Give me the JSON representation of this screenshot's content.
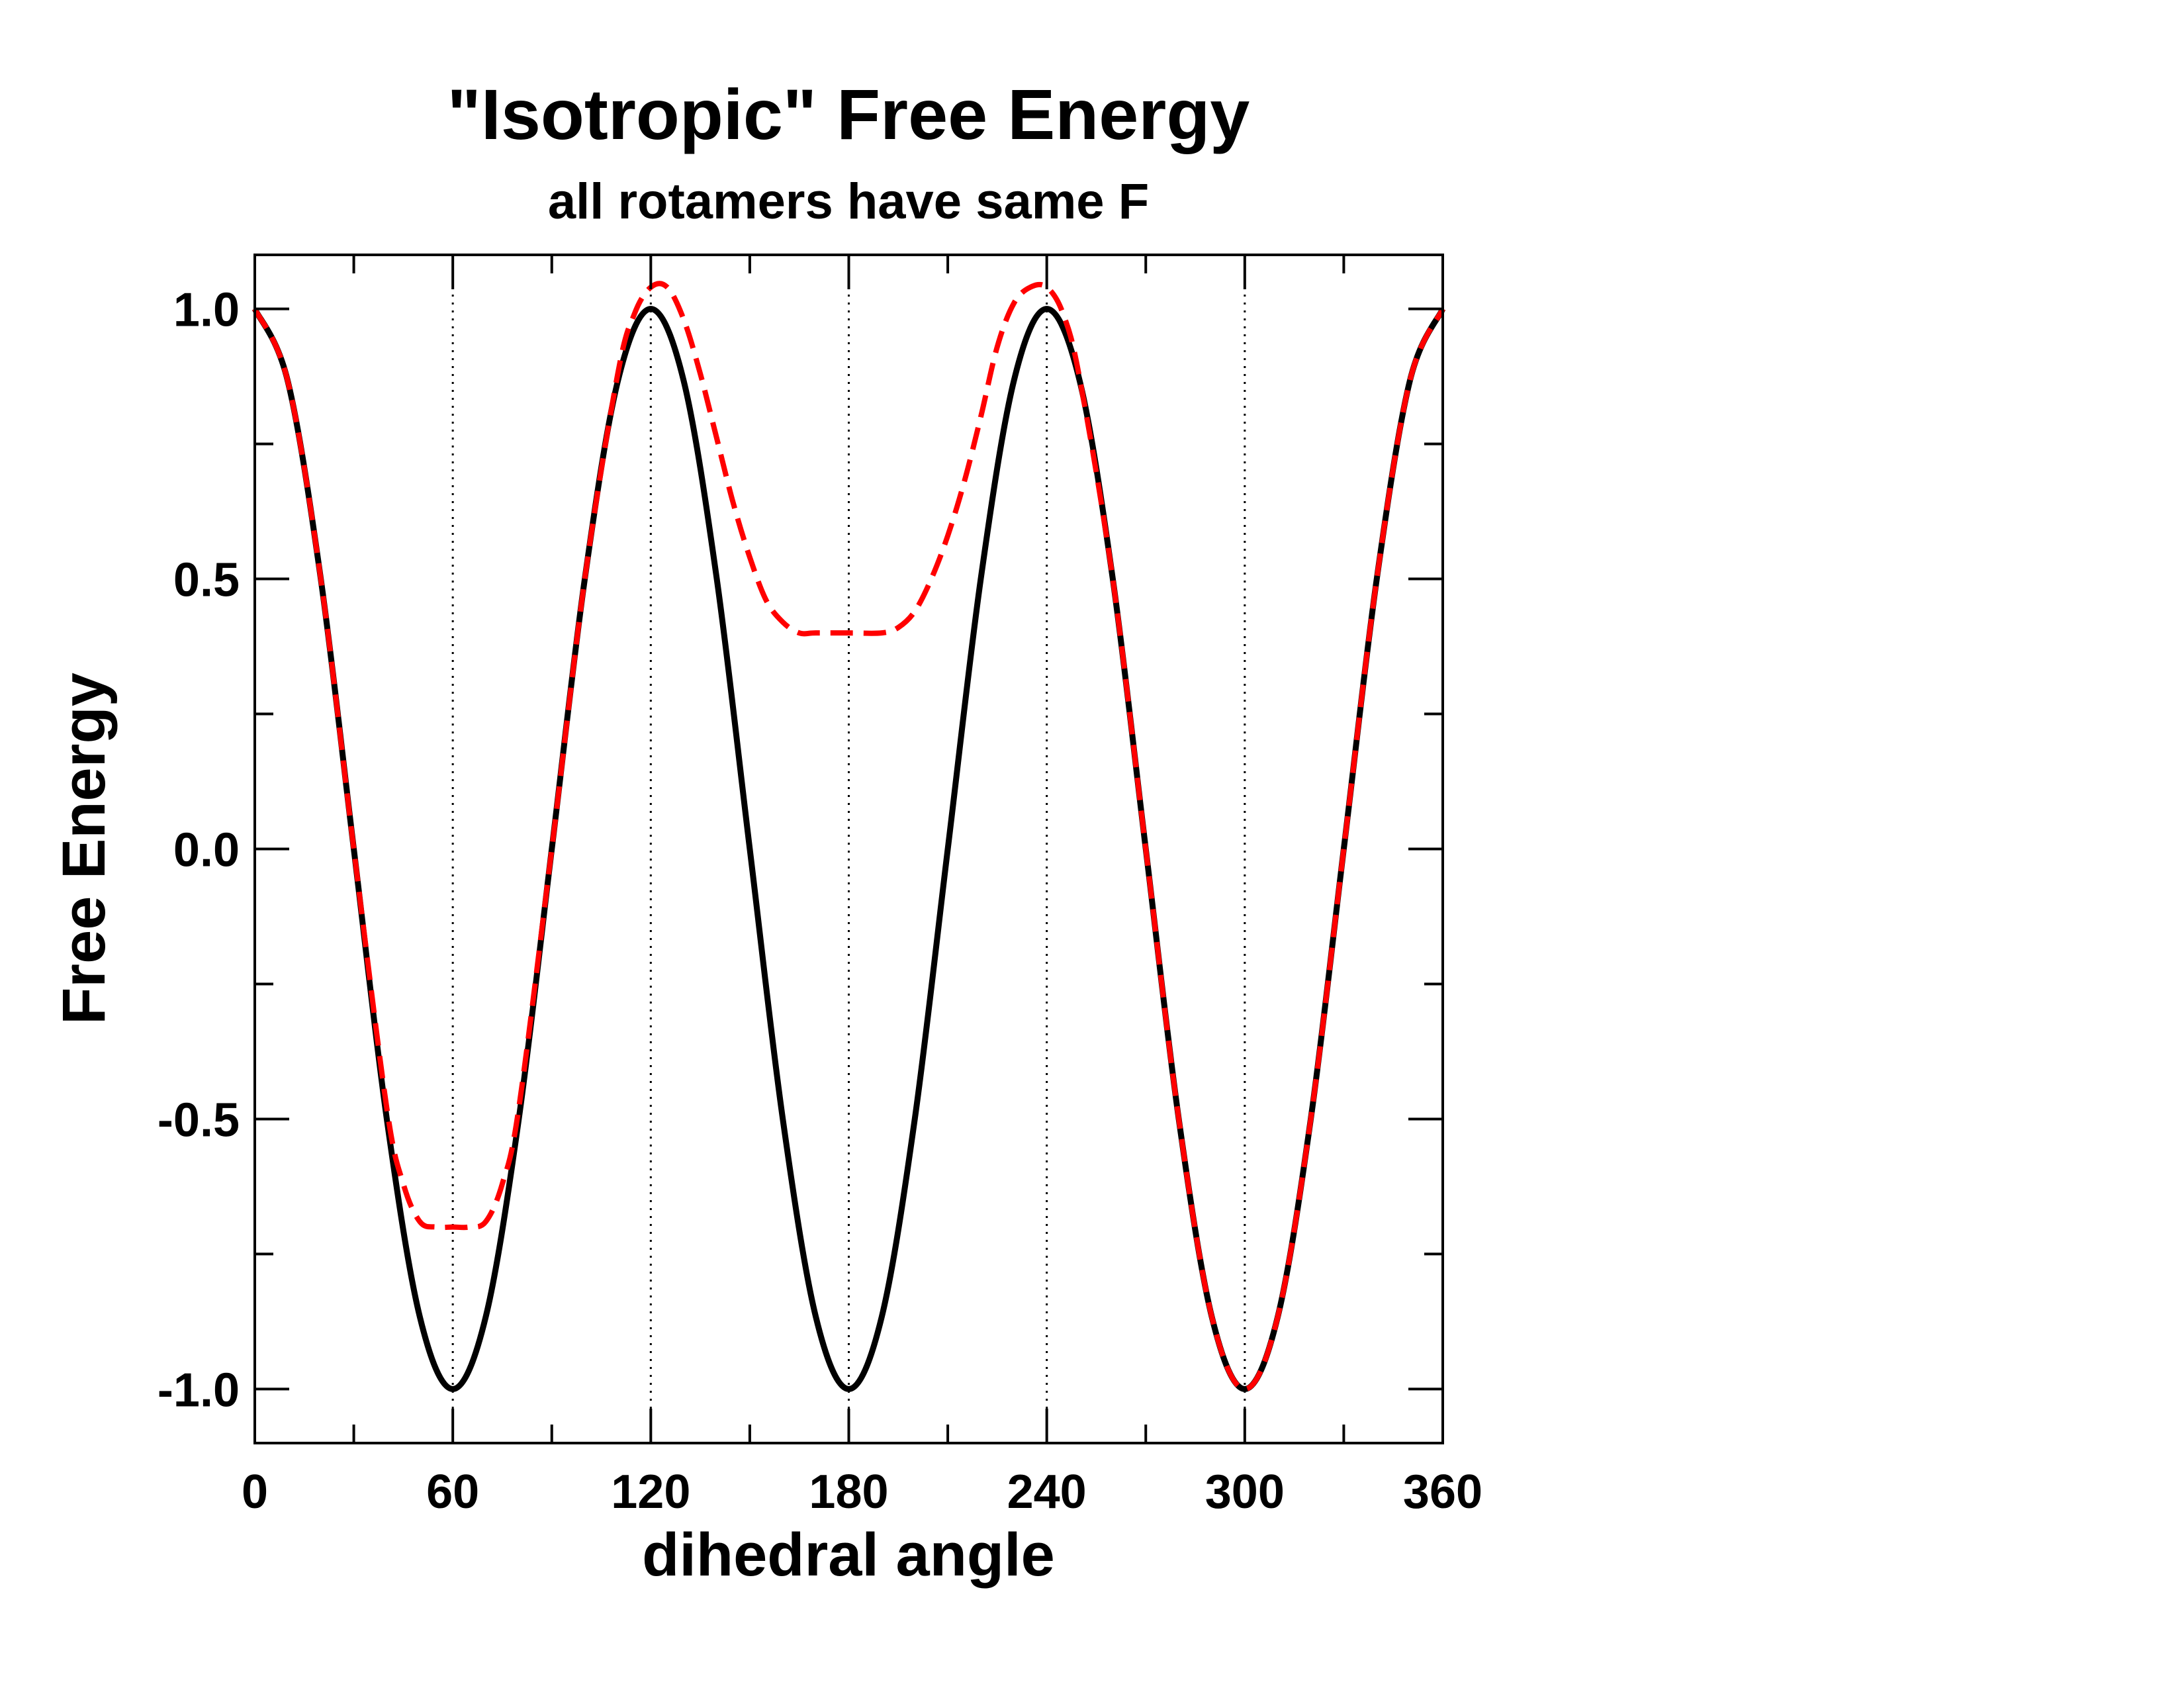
{
  "chart_data": {
    "type": "line",
    "title": "\"Isotropic\" Free Energy",
    "subtitle": "all rotamers have same F",
    "xlabel": "dihedral angle",
    "ylabel": "Free Energy",
    "xlim": [
      0,
      360
    ],
    "ylim": [
      -1.1,
      1.1
    ],
    "x_ticks": [
      "0",
      "60",
      "120",
      "180",
      "240",
      "300",
      "360"
    ],
    "y_ticks": [
      "-1.0",
      "-0.5",
      "0.0",
      "0.5",
      "1.0"
    ],
    "reference_lines_x": [
      60,
      120,
      180,
      240,
      300
    ],
    "grid": false,
    "legend": "none",
    "series": [
      {
        "style": "solid",
        "color": "#000000",
        "x": [
          0,
          10,
          20,
          30,
          40,
          50,
          60,
          70,
          80,
          90,
          100,
          110,
          120,
          130,
          140,
          150,
          160,
          170,
          180,
          190,
          200,
          210,
          220,
          230,
          240,
          250,
          260,
          270,
          280,
          290,
          300,
          310,
          320,
          330,
          340,
          350,
          360
        ],
        "y": [
          1.0,
          0.866,
          0.5,
          0.0,
          -0.5,
          -0.866,
          -1.0,
          -0.866,
          -0.5,
          0.0,
          0.5,
          0.866,
          1.0,
          0.866,
          0.5,
          0.0,
          -0.5,
          -0.866,
          -1.0,
          -0.866,
          -0.5,
          0.0,
          0.5,
          0.866,
          1.0,
          0.866,
          0.5,
          0.0,
          -0.5,
          -0.866,
          -1.0,
          -0.866,
          -0.5,
          0.0,
          0.5,
          0.866,
          1.0
        ]
      },
      {
        "style": "dashed",
        "color": "#ff0000",
        "x": [
          0,
          10,
          20,
          30,
          40,
          45,
          50,
          55,
          60,
          65,
          70,
          75,
          80,
          90,
          100,
          110,
          115,
          120,
          125,
          130,
          135,
          140,
          145,
          150,
          155,
          160,
          165,
          170,
          180,
          190,
          195,
          200,
          205,
          210,
          215,
          220,
          225,
          230,
          235,
          240,
          245,
          250,
          260,
          270,
          280,
          290,
          300,
          310,
          320,
          330,
          340,
          350,
          360
        ],
        "y": [
          1.0,
          0.866,
          0.5,
          0.0,
          -0.48,
          -0.62,
          -0.69,
          -0.7,
          -0.7,
          -0.7,
          -0.69,
          -0.62,
          -0.48,
          0.0,
          0.5,
          0.88,
          0.99,
          1.04,
          1.04,
          0.98,
          0.88,
          0.76,
          0.64,
          0.54,
          0.46,
          0.42,
          0.4,
          0.4,
          0.4,
          0.4,
          0.41,
          0.44,
          0.5,
          0.58,
          0.68,
          0.8,
          0.93,
          1.01,
          1.04,
          1.04,
          0.99,
          0.87,
          0.5,
          0.0,
          -0.5,
          -0.866,
          -1.0,
          -0.866,
          -0.5,
          0.0,
          0.5,
          0.866,
          1.0
        ]
      }
    ]
  }
}
